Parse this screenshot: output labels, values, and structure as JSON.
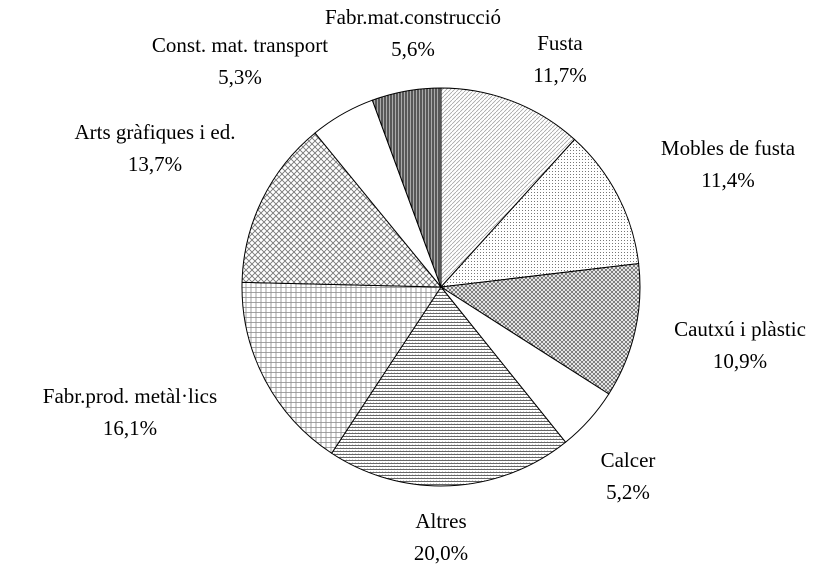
{
  "chart_data": {
    "type": "pie",
    "categories": [
      "Fusta",
      "Mobles de fusta",
      "Cautxú i plàstic",
      "Calcer",
      "Altres",
      "Fabr.prod. metàl·lics",
      "Arts gràfiques i ed.",
      "Const. mat. transport",
      "Fabr.mat.construcció"
    ],
    "values": [
      11.7,
      11.4,
      10.9,
      5.2,
      20.0,
      16.1,
      13.7,
      5.3,
      5.6
    ],
    "value_labels": [
      "11,7%",
      "11,4%",
      "10,9%",
      "5,2%",
      "20,0%",
      "16,1%",
      "13,7%",
      "5,3%",
      "5,6%"
    ]
  }
}
